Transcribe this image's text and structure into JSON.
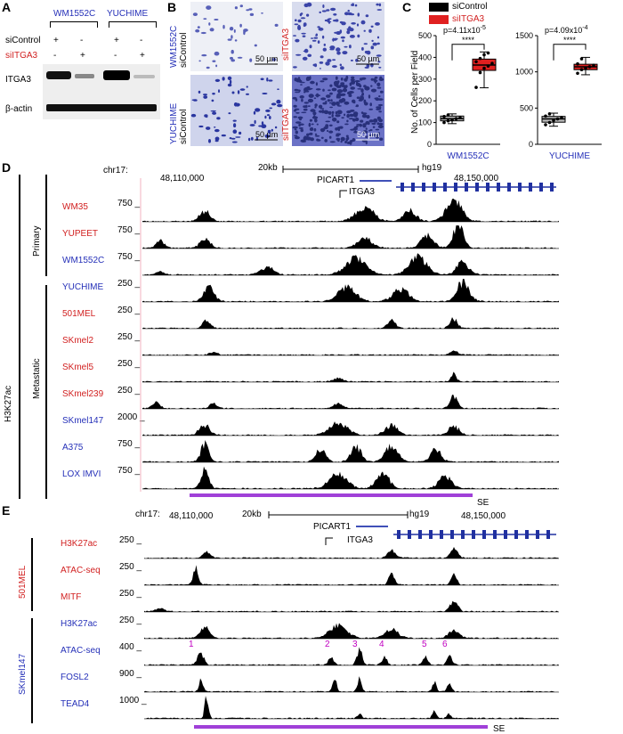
{
  "panel_letters": {
    "a": "A",
    "b": "B",
    "c": "C",
    "d": "D",
    "e": "E"
  },
  "panel_a": {
    "cell_lines": [
      "WM1552C",
      "YUCHIME"
    ],
    "row_labels": [
      "siControl",
      "siITGA3"
    ],
    "signs": [
      [
        "+",
        "-",
        "+",
        "-"
      ],
      [
        "-",
        "+",
        "-",
        "+"
      ]
    ],
    "bands": [
      "ITGA3",
      "β-actin"
    ]
  },
  "panel_b": {
    "row_labels": [
      {
        "cell": "WM1552C",
        "cond": "siControl"
      },
      {
        "cell": "YUCHIME",
        "cond": "siControl"
      }
    ],
    "col2_label": "siITGA3",
    "scale_bar": "50 µm"
  },
  "panel_c": {
    "legend": [
      {
        "name": "siControl",
        "color": "#000000"
      },
      {
        "name": "siITGA3",
        "color": "#e02020"
      }
    ],
    "ylabel": "No. of Cells per Field"
  },
  "chart_data": [
    {
      "type": "box",
      "title": "",
      "xlabel": "WM1552C",
      "ylabel": "No. of Cells per Field",
      "ylim": [
        0,
        500
      ],
      "yticks": [
        0,
        100,
        200,
        300,
        400,
        500
      ],
      "pvalue": "p=4.11x10",
      "pvalue_exp": "-5",
      "significance": "****",
      "series": [
        {
          "name": "siControl",
          "color": "#b8b8b8",
          "q1": 108,
          "median": 118,
          "q3": 130,
          "min": 95,
          "max": 140,
          "points": [
            100,
            108,
            112,
            118,
            122,
            128,
            135
          ]
        },
        {
          "name": "siITGA3",
          "color": "#e02020",
          "q1": 340,
          "median": 365,
          "q3": 392,
          "min": 260,
          "max": 425,
          "points": [
            262,
            330,
            350,
            360,
            372,
            380,
            395,
            412,
            420
          ]
        }
      ]
    },
    {
      "type": "box",
      "title": "",
      "xlabel": "YUCHIME",
      "ylabel": "",
      "ylim": [
        0,
        1500
      ],
      "yticks": [
        0,
        500,
        1000,
        1500
      ],
      "pvalue": "p=4.09x10",
      "pvalue_exp": "-4",
      "significance": "****",
      "series": [
        {
          "name": "siControl",
          "color": "#b8b8b8",
          "q1": 305,
          "median": 350,
          "q3": 385,
          "min": 250,
          "max": 430,
          "points": [
            270,
            300,
            330,
            350,
            370,
            390,
            420
          ]
        },
        {
          "name": "siITGA3",
          "color": "#e02020",
          "q1": 1030,
          "median": 1070,
          "q3": 1105,
          "min": 960,
          "max": 1200,
          "points": [
            980,
            1030,
            1050,
            1070,
            1090,
            1110,
            1180
          ]
        }
      ]
    }
  ],
  "panel_d": {
    "chrom": "chr17:",
    "pos1": "48,110,000",
    "pos2": "48,150,000",
    "scale": "20kb",
    "genome": "hg19",
    "genes": [
      "PICART1",
      "ITGA3"
    ],
    "mark": "H3K27ac",
    "groups": [
      "Primary",
      "Metastatic"
    ],
    "se_label": "SE",
    "tracks": [
      {
        "name": "WM35",
        "scale": "750",
        "color": "red"
      },
      {
        "name": "YUPEET",
        "scale": "750",
        "color": "red"
      },
      {
        "name": "WM1552C",
        "scale": "750",
        "color": "blue"
      },
      {
        "name": "YUCHIME",
        "scale": "250",
        "color": "blue"
      },
      {
        "name": "501MEL",
        "scale": "250",
        "color": "red"
      },
      {
        "name": "SKmel2",
        "scale": "250",
        "color": "red"
      },
      {
        "name": "SKmel5",
        "scale": "250",
        "color": "red"
      },
      {
        "name": "SKmel239",
        "scale": "250",
        "color": "red"
      },
      {
        "name": "SKmel147",
        "scale": "2000",
        "color": "blue"
      },
      {
        "name": "A375",
        "scale": "750",
        "color": "blue"
      },
      {
        "name": "LOX IMVI",
        "scale": "750",
        "color": "blue"
      }
    ]
  },
  "panel_e": {
    "chrom": "chr17:",
    "pos1": "48,110,000",
    "pos2": "48,150,000",
    "scale": "20kb",
    "genome": "hg19",
    "genes": [
      "PICART1",
      "ITGA3"
    ],
    "groups": [
      "501MEL",
      "SKmel147"
    ],
    "se_label": "SE",
    "peak_numbers": [
      "1",
      "2",
      "3",
      "4",
      "5",
      "6"
    ],
    "tracks": [
      {
        "name": "H3K27ac",
        "scale": "250",
        "color": "red"
      },
      {
        "name": "ATAC-seq",
        "scale": "250",
        "color": "red"
      },
      {
        "name": "MITF",
        "scale": "250",
        "color": "red"
      },
      {
        "name": "H3K27ac",
        "scale": "250",
        "color": "blue"
      },
      {
        "name": "ATAC-seq",
        "scale": "400",
        "color": "blue"
      },
      {
        "name": "FOSL2",
        "scale": "900",
        "color": "blue"
      },
      {
        "name": "TEAD4",
        "scale": "1000",
        "color": "blue"
      }
    ]
  }
}
